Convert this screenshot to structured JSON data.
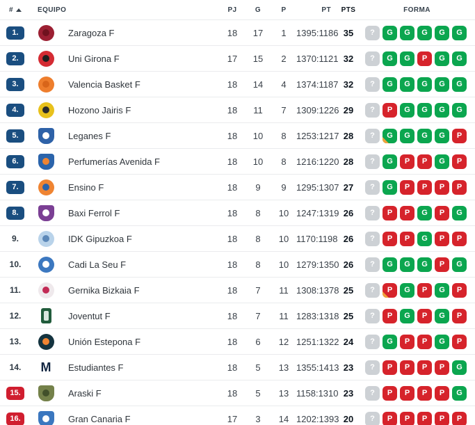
{
  "colors": {
    "promotion_rank_badge": "#1a4e80",
    "relegation_rank_badge": "#d01e2f",
    "form_win": "#0ba64f",
    "form_loss": "#d6232b",
    "form_unknown": "#cdd1d5",
    "overtime_marker": "#f0a23c"
  },
  "header": {
    "rank_label": "#",
    "sort_icon": "ascending",
    "team_label": "EQUIPO",
    "played_label": "PJ",
    "wins_label": "G",
    "losses_label": "P",
    "points_label": "PT",
    "pts_label": "PTS",
    "form_label": "FORMA"
  },
  "table": {
    "rows": [
      {
        "rank": "1.",
        "rank_style": "top",
        "team": "Zaragoza F",
        "logo": {
          "shape": "circle",
          "bg": "#9c2033",
          "fg": "#70121f"
        },
        "pj": "18",
        "g": "17",
        "p": "1",
        "pt": "1395:1186",
        "pts": "35",
        "form": [
          {
            "r": "?"
          },
          {
            "r": "G"
          },
          {
            "r": "G"
          },
          {
            "r": "G"
          },
          {
            "r": "G"
          },
          {
            "r": "G"
          }
        ]
      },
      {
        "rank": "2.",
        "rank_style": "top",
        "team": "Uni Girona F",
        "logo": {
          "shape": "circle",
          "bg": "#d42b33",
          "fg": "#1f1f1f"
        },
        "pj": "17",
        "g": "15",
        "p": "2",
        "pt": "1370:1121",
        "pts": "32",
        "form": [
          {
            "r": "?"
          },
          {
            "r": "G"
          },
          {
            "r": "G"
          },
          {
            "r": "P"
          },
          {
            "r": "G"
          },
          {
            "r": "G"
          }
        ]
      },
      {
        "rank": "3.",
        "rank_style": "top",
        "team": "Valencia Basket F",
        "logo": {
          "shape": "circle",
          "bg": "#ee7e2d",
          "fg": "#d8651a"
        },
        "pj": "18",
        "g": "14",
        "p": "4",
        "pt": "1374:1187",
        "pts": "32",
        "form": [
          {
            "r": "?"
          },
          {
            "r": "G"
          },
          {
            "r": "G"
          },
          {
            "r": "G"
          },
          {
            "r": "G"
          },
          {
            "r": "G"
          }
        ]
      },
      {
        "rank": "4.",
        "rank_style": "top",
        "team": "Hozono Jairis F",
        "logo": {
          "shape": "circle",
          "bg": "#e8c11c",
          "fg": "#2b2b2b"
        },
        "pj": "18",
        "g": "11",
        "p": "7",
        "pt": "1309:1226",
        "pts": "29",
        "form": [
          {
            "r": "?"
          },
          {
            "r": "P"
          },
          {
            "r": "G"
          },
          {
            "r": "G"
          },
          {
            "r": "G"
          },
          {
            "r": "G"
          }
        ]
      },
      {
        "rank": "5.",
        "rank_style": "top",
        "team": "Leganes F",
        "logo": {
          "shape": "shield",
          "bg": "#2e62a8",
          "fg": "#ffffff"
        },
        "pj": "18",
        "g": "10",
        "p": "8",
        "pt": "1253:1217",
        "pts": "28",
        "form": [
          {
            "r": "?"
          },
          {
            "r": "G",
            "ot": true
          },
          {
            "r": "G"
          },
          {
            "r": "G"
          },
          {
            "r": "G"
          },
          {
            "r": "P"
          }
        ]
      },
      {
        "rank": "6.",
        "rank_style": "top",
        "team": "Perfumerías Avenida F",
        "logo": {
          "shape": "shield",
          "bg": "#2b64ab",
          "fg": "#ef8432"
        },
        "pj": "18",
        "g": "10",
        "p": "8",
        "pt": "1216:1220",
        "pts": "28",
        "form": [
          {
            "r": "?"
          },
          {
            "r": "G"
          },
          {
            "r": "P"
          },
          {
            "r": "P"
          },
          {
            "r": "G"
          },
          {
            "r": "P"
          }
        ]
      },
      {
        "rank": "7.",
        "rank_style": "top",
        "team": "Ensino F",
        "logo": {
          "shape": "circle",
          "bg": "#ef8432",
          "fg": "#2b64ab"
        },
        "pj": "18",
        "g": "9",
        "p": "9",
        "pt": "1295:1307",
        "pts": "27",
        "form": [
          {
            "r": "?"
          },
          {
            "r": "G"
          },
          {
            "r": "P"
          },
          {
            "r": "P"
          },
          {
            "r": "P"
          },
          {
            "r": "P"
          }
        ]
      },
      {
        "rank": "8.",
        "rank_style": "top",
        "team": "Baxi Ferrol F",
        "logo": {
          "shape": "shield",
          "bg": "#7b3f94",
          "fg": "#ffffff"
        },
        "pj": "18",
        "g": "8",
        "p": "10",
        "pt": "1247:1319",
        "pts": "26",
        "form": [
          {
            "r": "?"
          },
          {
            "r": "P"
          },
          {
            "r": "P"
          },
          {
            "r": "G"
          },
          {
            "r": "P"
          },
          {
            "r": "G"
          }
        ]
      },
      {
        "rank": "9.",
        "rank_style": "none",
        "team": "IDK Gipuzkoa F",
        "logo": {
          "shape": "circle",
          "bg": "#b9d3ea",
          "fg": "#5c88b8"
        },
        "pj": "18",
        "g": "8",
        "p": "10",
        "pt": "1170:1198",
        "pts": "26",
        "form": [
          {
            "r": "?"
          },
          {
            "r": "P"
          },
          {
            "r": "P"
          },
          {
            "r": "G"
          },
          {
            "r": "P"
          },
          {
            "r": "P"
          }
        ]
      },
      {
        "rank": "10.",
        "rank_style": "none",
        "team": "Cadi La Seu F",
        "logo": {
          "shape": "circle",
          "bg": "#3c78c0",
          "fg": "#ffffff"
        },
        "pj": "18",
        "g": "8",
        "p": "10",
        "pt": "1279:1350",
        "pts": "26",
        "form": [
          {
            "r": "?"
          },
          {
            "r": "G"
          },
          {
            "r": "G"
          },
          {
            "r": "G"
          },
          {
            "r": "P"
          },
          {
            "r": "G"
          }
        ]
      },
      {
        "rank": "11.",
        "rank_style": "none",
        "team": "Gernika Bizkaia F",
        "logo": {
          "shape": "circle",
          "bg": "#efe9ec",
          "fg": "#c22a55"
        },
        "pj": "18",
        "g": "7",
        "p": "11",
        "pt": "1308:1378",
        "pts": "25",
        "form": [
          {
            "r": "?"
          },
          {
            "r": "P",
            "ot": true
          },
          {
            "r": "G"
          },
          {
            "r": "P"
          },
          {
            "r": "G"
          },
          {
            "r": "P"
          }
        ]
      },
      {
        "rank": "12.",
        "rank_style": "none",
        "team": "Joventut F",
        "logo": {
          "shape": "rect",
          "bg": "#215c3c",
          "fg": "#d9e6de"
        },
        "pj": "18",
        "g": "7",
        "p": "11",
        "pt": "1283:1318",
        "pts": "25",
        "form": [
          {
            "r": "?"
          },
          {
            "r": "P"
          },
          {
            "r": "G"
          },
          {
            "r": "P"
          },
          {
            "r": "G"
          },
          {
            "r": "P"
          }
        ]
      },
      {
        "rank": "13.",
        "rank_style": "none",
        "team": "Unión Estepona F",
        "logo": {
          "shape": "circle",
          "bg": "#14333f",
          "fg": "#ef8432"
        },
        "pj": "18",
        "g": "6",
        "p": "12",
        "pt": "1251:1322",
        "pts": "24",
        "form": [
          {
            "r": "?"
          },
          {
            "r": "G"
          },
          {
            "r": "P"
          },
          {
            "r": "P"
          },
          {
            "r": "G"
          },
          {
            "r": "P"
          }
        ]
      },
      {
        "rank": "14.",
        "rank_style": "none",
        "team": "Estudiantes F",
        "logo": {
          "shape": "letter",
          "bg": "transparent",
          "fg": "#122642",
          "text": "M"
        },
        "pj": "18",
        "g": "5",
        "p": "13",
        "pt": "1355:1413",
        "pts": "23",
        "form": [
          {
            "r": "?"
          },
          {
            "r": "P"
          },
          {
            "r": "P"
          },
          {
            "r": "P"
          },
          {
            "r": "P"
          },
          {
            "r": "G"
          }
        ]
      },
      {
        "rank": "15.",
        "rank_style": "bottom",
        "team": "Araski F",
        "logo": {
          "shape": "shield",
          "bg": "#74814a",
          "fg": "#41502a"
        },
        "pj": "18",
        "g": "5",
        "p": "13",
        "pt": "1158:1310",
        "pts": "23",
        "form": [
          {
            "r": "?"
          },
          {
            "r": "P"
          },
          {
            "r": "P"
          },
          {
            "r": "P"
          },
          {
            "r": "P"
          },
          {
            "r": "G"
          }
        ]
      },
      {
        "rank": "16.",
        "rank_style": "bottom",
        "team": "Gran Canaria F",
        "logo": {
          "shape": "shield",
          "bg": "#3b77bf",
          "fg": "#ffffff"
        },
        "pj": "17",
        "g": "3",
        "p": "14",
        "pt": "1202:1393",
        "pts": "20",
        "form": [
          {
            "r": "?"
          },
          {
            "r": "P"
          },
          {
            "r": "P"
          },
          {
            "r": "P"
          },
          {
            "r": "P"
          },
          {
            "r": "P"
          }
        ]
      }
    ]
  }
}
